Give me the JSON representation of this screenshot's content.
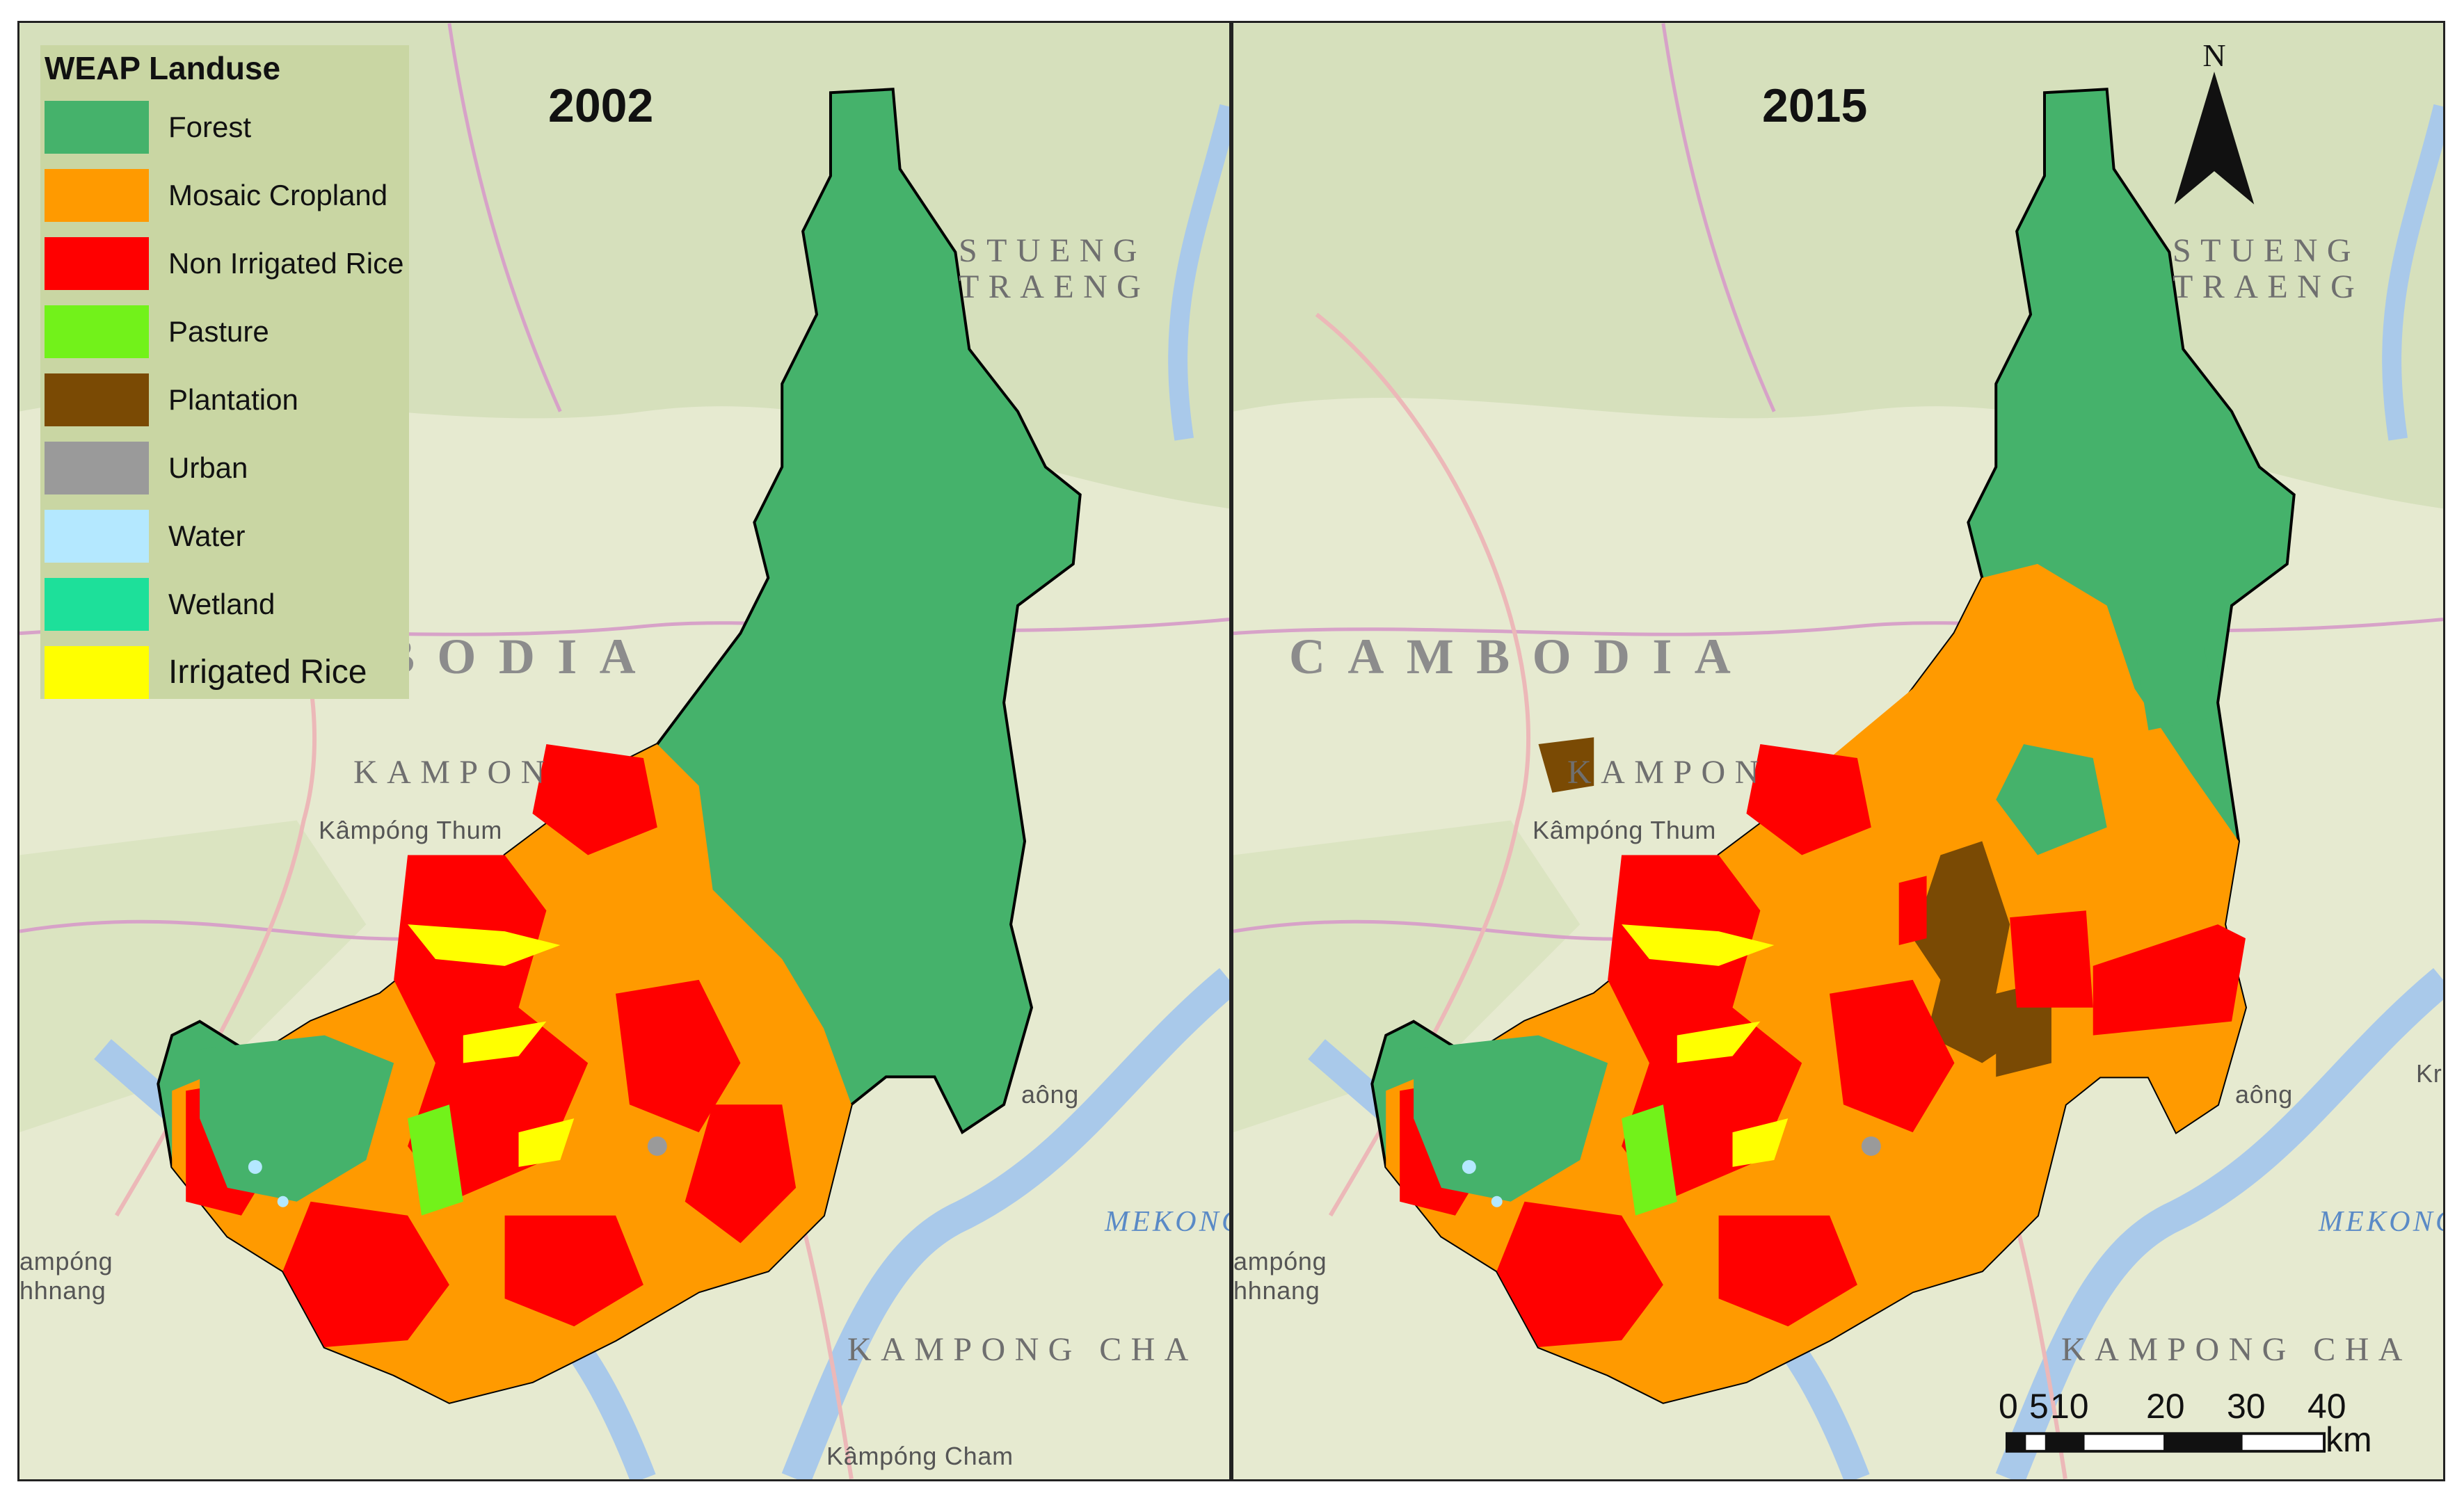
{
  "legend": {
    "title": "WEAP Landuse",
    "items": [
      {
        "label": "Forest",
        "color": "#45b26b"
      },
      {
        "label": "Mosaic Cropland",
        "color": "#ff9a00"
      },
      {
        "label": "Non Irrigated Rice",
        "color": "#ff0000"
      },
      {
        "label": "Pasture",
        "color": "#72f21a"
      },
      {
        "label": "Plantation",
        "color": "#7a4a04"
      },
      {
        "label": "Urban",
        "color": "#9a9a9a"
      },
      {
        "label": "Water",
        "color": "#b4e8ff"
      },
      {
        "label": "Wetland",
        "color": "#1de09a"
      },
      {
        "label": "Irrigated Rice",
        "color": "#ffff00"
      }
    ]
  },
  "maps": [
    {
      "year": "2002"
    },
    {
      "year": "2015"
    }
  ],
  "basemap_labels": {
    "country": "CAMBODIA",
    "country_partial": "BODIA",
    "province_north": "STUENG",
    "province_north2": "TRAENG",
    "province_mid": "KAMPON",
    "town_thum": "Kâmpóng Thum",
    "province_south": "KAMPONG CHA",
    "town_cham": "Kâmpóng Cham",
    "river": "MEKONG",
    "town_chhnang1": "ampóng",
    "town_chhnang2": "hhnang",
    "town_snuol": "aông",
    "town_kr": "Kr"
  },
  "north_arrow": {
    "label": "N"
  },
  "scale_bar": {
    "ticks": [
      "0",
      "5",
      "10",
      "20",
      "30",
      "40"
    ],
    "unit": "km"
  }
}
